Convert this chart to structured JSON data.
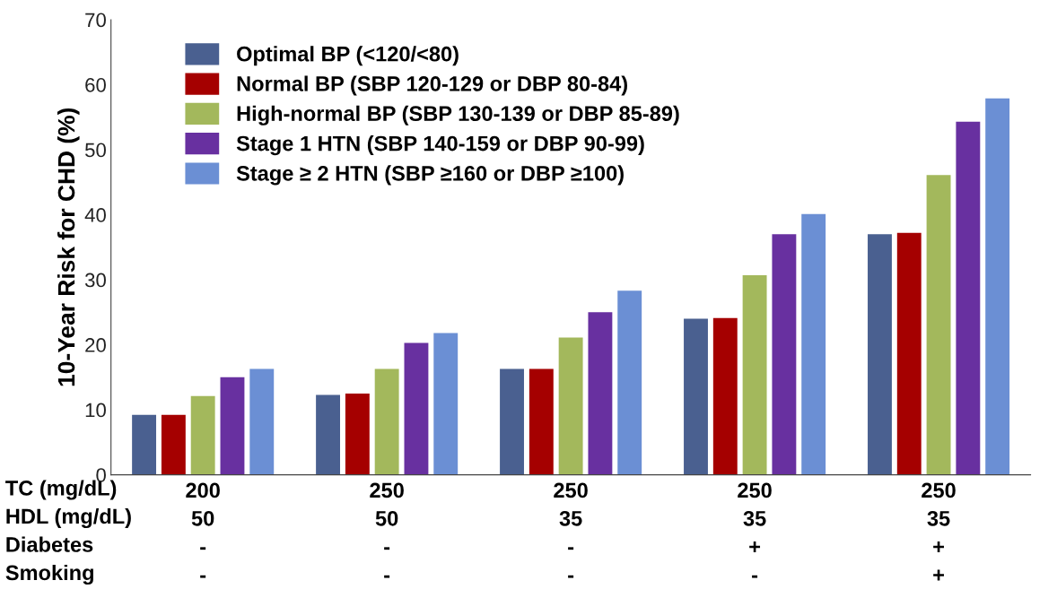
{
  "chart_data": {
    "type": "bar",
    "ylabel": "10-Year Risk for CHD (%)",
    "xlabel": "TC (mg/dL)\nHDL (mg/dL)\nDiabetes\nSmoking",
    "categories": [
      "200\n50\n-\n-",
      "250\n50\n-\n-",
      "250\n35\n-\n-",
      "250\n35\n+\n-",
      "250\n35\n+\n+"
    ],
    "series": [
      {
        "name": "Optimal BP (<120/<80)",
        "color": "#4a6090",
        "values": [
          9.2,
          12.3,
          16.3,
          24.0,
          37.0
        ]
      },
      {
        "name": "Normal BP (SBP 120-129 or DBP 80-84)",
        "color": "#a50000",
        "values": [
          9.2,
          12.5,
          16.3,
          24.1,
          37.2
        ]
      },
      {
        "name": "High-normal BP (SBP 130-139 or DBP 85-89)",
        "color": "#a3b85c",
        "values": [
          12.1,
          16.3,
          21.1,
          30.7,
          46.1
        ]
      },
      {
        "name": "Stage 1 HTN (SBP 140-159 or DBP 90-99)",
        "color": "#6830a0",
        "values": [
          15.0,
          20.3,
          25.0,
          37.0,
          54.3
        ]
      },
      {
        "name": "Stage ≥ 2 HTN (SBP ≥160 or DBP ≥100)",
        "color": "#6b8fd4",
        "values": [
          16.3,
          21.8,
          28.3,
          40.1,
          57.9
        ]
      }
    ],
    "ylim": [
      0,
      70
    ],
    "yticks": [
      0,
      10,
      20,
      30,
      40,
      50,
      60,
      70
    ],
    "grid": false,
    "legend": "top left"
  }
}
